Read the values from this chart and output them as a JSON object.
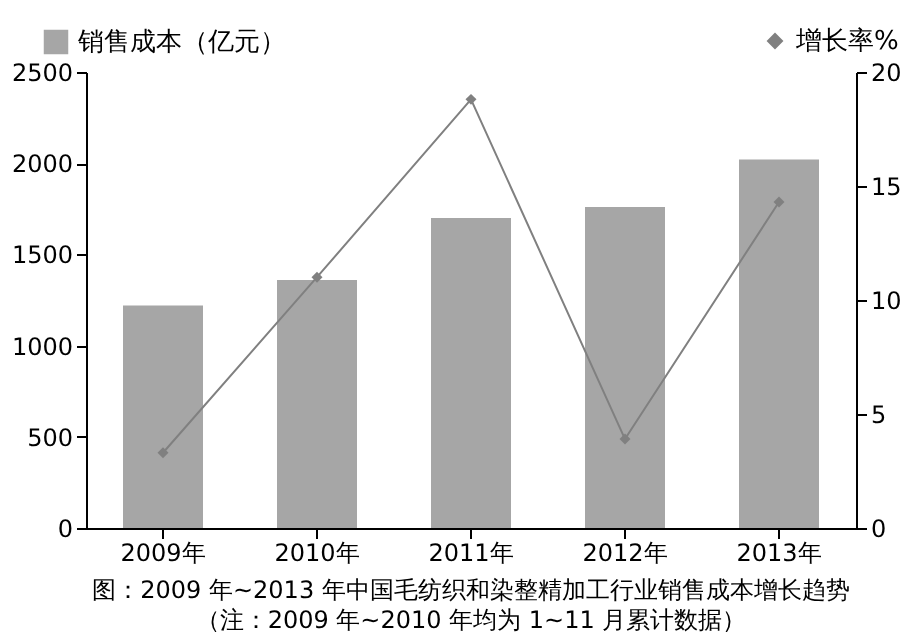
{
  "chart_data": {
    "type": "bar",
    "title": "图：2009 年~2013 年中国毛纺织和染整精加工行业销售成本增长趋势",
    "subtitle": "（注：2009 年~2010 年均为 1~11 月累计数据）",
    "categories": [
      "2009年",
      "2010年",
      "2011年",
      "2012年",
      "2013年"
    ],
    "series": [
      {
        "name": "销售成本（亿元）",
        "color": "#a6a6a6",
        "values": [
          1220,
          1360,
          1700,
          1760,
          2020
        ]
      },
      {
        "name": "增长率%",
        "type": "line",
        "axis": "y2",
        "color": "#808080",
        "marker": "diamond",
        "values": [
          3.3,
          11.0,
          18.8,
          3.9,
          14.3
        ]
      }
    ],
    "ylim": [
      0,
      2500
    ],
    "yticks": [
      0,
      500,
      1000,
      1500,
      2000,
      2500
    ],
    "y2lim": [
      0,
      20
    ],
    "y2ticks": [
      0,
      5,
      10,
      15,
      20
    ],
    "grid": false,
    "legend": "top"
  }
}
